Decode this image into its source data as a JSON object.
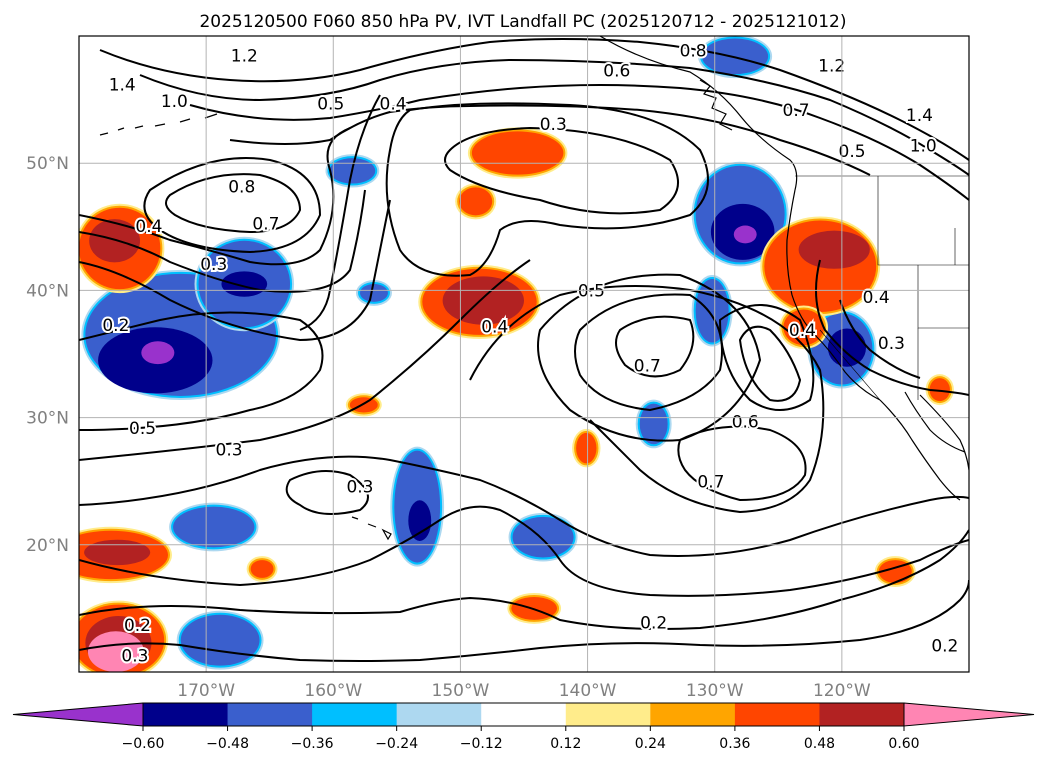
{
  "title": "2025120500 F060 850 hPa PV, IVT Landfall PC (2025120712 - 2025121012)",
  "map": {
    "lon_range": [
      -180,
      -110
    ],
    "lat_range": [
      10,
      60
    ],
    "lon_ticks": [
      {
        "lon": -170,
        "label": "170°W"
      },
      {
        "lon": -160,
        "label": "160°W"
      },
      {
        "lon": -150,
        "label": "150°W"
      },
      {
        "lon": -140,
        "label": "140°W"
      },
      {
        "lon": -130,
        "label": "130°W"
      },
      {
        "lon": -120,
        "label": "120°W"
      }
    ],
    "lat_ticks": [
      {
        "lat": 20,
        "label": "20°N"
      },
      {
        "lat": 30,
        "label": "30°N"
      },
      {
        "lat": 40,
        "label": "40°N"
      },
      {
        "lat": 50,
        "label": "50°N"
      }
    ],
    "grid": true,
    "tick_label_color": "#808080"
  },
  "colorbar": {
    "orientation": "horizontal",
    "extend": "both",
    "colors": [
      "#9932cc",
      "#00008b",
      "#3a5fcd",
      "#00bfff",
      "#add8f0",
      "#ffffff",
      "#ffec8b",
      "#ffa500",
      "#ff4500",
      "#b22222",
      "#ff85b3"
    ],
    "tick_labels": [
      "−0.60",
      "−0.48",
      "−0.36",
      "−0.24",
      "−0.12",
      "0.12",
      "0.24",
      "0.36",
      "0.48",
      "0.60"
    ]
  },
  "contour_labels": [
    {
      "text": "1.4",
      "lon": -176.6,
      "lat": 56.1
    },
    {
      "text": "1.0",
      "lon": -172.5,
      "lat": 54.8
    },
    {
      "text": "1.2",
      "lon": -167.0,
      "lat": 58.4
    },
    {
      "text": "0.5",
      "lon": -160.2,
      "lat": 54.6
    },
    {
      "text": "0.4",
      "lon": -155.3,
      "lat": 54.6
    },
    {
      "text": "0.6",
      "lon": -137.7,
      "lat": 57.2
    },
    {
      "text": "0.8",
      "lon": -131.7,
      "lat": 58.8
    },
    {
      "text": "1.2",
      "lon": -120.8,
      "lat": 57.6
    },
    {
      "text": "0.7",
      "lon": -123.6,
      "lat": 54.1
    },
    {
      "text": "1.4",
      "lon": -113.9,
      "lat": 53.7
    },
    {
      "text": "1.0",
      "lon": -113.6,
      "lat": 51.3
    },
    {
      "text": "0.5",
      "lon": -119.2,
      "lat": 50.9
    },
    {
      "text": "0.3",
      "lon": -142.7,
      "lat": 53.0
    },
    {
      "text": "0.8",
      "lon": -167.2,
      "lat": 48.1
    },
    {
      "text": "0.4",
      "lon": -174.5,
      "lat": 45.0
    },
    {
      "text": "0.7",
      "lon": -165.3,
      "lat": 45.2
    },
    {
      "text": "0.3",
      "lon": -169.4,
      "lat": 42.0
    },
    {
      "text": "0.2",
      "lon": -177.1,
      "lat": 37.2
    },
    {
      "text": "0.5",
      "lon": -139.7,
      "lat": 39.9
    },
    {
      "text": "0.4",
      "lon": -147.3,
      "lat": 37.1
    },
    {
      "text": "0.7",
      "lon": -135.3,
      "lat": 34.0
    },
    {
      "text": "0.6",
      "lon": -127.6,
      "lat": 29.6
    },
    {
      "text": "0.7",
      "lon": -130.3,
      "lat": 24.9
    },
    {
      "text": "0.4",
      "lon": -123.1,
      "lat": 36.8
    },
    {
      "text": "0.4",
      "lon": -117.3,
      "lat": 39.4
    },
    {
      "text": "0.3",
      "lon": -116.1,
      "lat": 35.8
    },
    {
      "text": "0.5",
      "lon": -175.0,
      "lat": 29.1
    },
    {
      "text": "0.3",
      "lon": -168.2,
      "lat": 27.4
    },
    {
      "text": "0.3",
      "lon": -157.9,
      "lat": 24.5
    },
    {
      "text": "0.2",
      "lon": -134.8,
      "lat": 13.8
    },
    {
      "text": "0.2",
      "lon": -175.4,
      "lat": 13.6
    },
    {
      "text": "0.3",
      "lon": -175.6,
      "lat": 11.2
    },
    {
      "text": "0.2",
      "lon": -111.9,
      "lat": 12.0
    }
  ],
  "shaded_areas": [
    {
      "level": -0.36,
      "color": "#3a5fcd",
      "center": [
        -172,
        36.5
      ],
      "radius": [
        7.5,
        4.8
      ]
    },
    {
      "level": -0.36,
      "color": "#3a5fcd",
      "center": [
        -167,
        40.5
      ],
      "radius": [
        3.6,
        3.4
      ]
    },
    {
      "level": -0.48,
      "color": "#00008b",
      "center": [
        -174,
        34.5
      ],
      "radius": [
        4.5,
        2.6
      ]
    },
    {
      "level": -0.6,
      "color": "#9932cc",
      "center": [
        -173.8,
        35.1
      ],
      "radius": [
        1.3,
        0.9
      ]
    },
    {
      "level": -0.48,
      "color": "#00008b",
      "center": [
        -167,
        40.5
      ],
      "radius": [
        1.8,
        1.0
      ]
    },
    {
      "level": -0.36,
      "color": "#3a5fcd",
      "center": [
        -158.5,
        49.4
      ],
      "radius": [
        1.8,
        1.0
      ]
    },
    {
      "level": -0.36,
      "color": "#3a5fcd",
      "center": [
        -156.8,
        39.8
      ],
      "radius": [
        1.1,
        0.7
      ]
    },
    {
      "level": -0.36,
      "color": "#3a5fcd",
      "center": [
        -128,
        46.0
      ],
      "radius": [
        3.5,
        3.8
      ]
    },
    {
      "level": -0.48,
      "color": "#00008b",
      "center": [
        -127.8,
        44.6
      ],
      "radius": [
        2.5,
        2.2
      ]
    },
    {
      "level": -0.6,
      "color": "#9932cc",
      "center": [
        -127.6,
        44.4
      ],
      "radius": [
        0.9,
        0.7
      ]
    },
    {
      "level": -0.36,
      "color": "#3a5fcd",
      "center": [
        -130.2,
        38.4
      ],
      "radius": [
        1.3,
        2.5
      ]
    },
    {
      "level": -0.36,
      "color": "#3a5fcd",
      "center": [
        -120,
        35.4
      ],
      "radius": [
        2.4,
        2.8
      ]
    },
    {
      "level": -0.48,
      "color": "#00008b",
      "center": [
        -119.6,
        35.5
      ],
      "radius": [
        1.5,
        1.5
      ]
    },
    {
      "level": -0.36,
      "color": "#3a5fcd",
      "center": [
        -134.8,
        29.5
      ],
      "radius": [
        1.1,
        1.6
      ]
    },
    {
      "level": -0.36,
      "color": "#3a5fcd",
      "center": [
        -153.4,
        23.0
      ],
      "radius": [
        1.8,
        4.4
      ]
    },
    {
      "level": -0.48,
      "color": "#00008b",
      "center": [
        -153.2,
        21.9
      ],
      "radius": [
        0.9,
        1.6
      ]
    },
    {
      "level": -0.36,
      "color": "#3a5fcd",
      "center": [
        -143.5,
        20.6
      ],
      "radius": [
        2.4,
        1.6
      ]
    },
    {
      "level": -0.36,
      "color": "#3a5fcd",
      "center": [
        -169.4,
        21.4
      ],
      "radius": [
        3.2,
        1.6
      ]
    },
    {
      "level": -0.36,
      "color": "#3a5fcd",
      "center": [
        -168.9,
        12.5
      ],
      "radius": [
        3.1,
        2.0
      ]
    },
    {
      "level": -0.36,
      "color": "#3a5fcd",
      "center": [
        -128.4,
        58.4
      ],
      "radius": [
        2.6,
        1.4
      ]
    },
    {
      "level": 0.36,
      "color": "#ff4500",
      "center": [
        -176.8,
        43.3
      ],
      "radius": [
        3.2,
        3.2
      ]
    },
    {
      "level": 0.48,
      "color": "#b22222",
      "center": [
        -177.2,
        43.9
      ],
      "radius": [
        2.0,
        1.7
      ]
    },
    {
      "level": 0.36,
      "color": "#ff4500",
      "center": [
        -145.5,
        50.8
      ],
      "radius": [
        3.6,
        1.7
      ]
    },
    {
      "level": 0.36,
      "color": "#ff4500",
      "center": [
        -148.8,
        47.0
      ],
      "radius": [
        1.3,
        1.1
      ]
    },
    {
      "level": 0.36,
      "color": "#ff4500",
      "center": [
        -148.5,
        39.1
      ],
      "radius": [
        4.5,
        2.6
      ]
    },
    {
      "level": 0.48,
      "color": "#b22222",
      "center": [
        -148.2,
        39.2
      ],
      "radius": [
        3.2,
        1.9
      ]
    },
    {
      "level": 0.36,
      "color": "#ff4500",
      "center": [
        -121.7,
        41.9
      ],
      "radius": [
        4.4,
        3.6
      ]
    },
    {
      "level": 0.48,
      "color": "#b22222",
      "center": [
        -120.6,
        43.2
      ],
      "radius": [
        2.8,
        1.5
      ]
    },
    {
      "level": 0.36,
      "color": "#ff4500",
      "center": [
        -123.0,
        37.1
      ],
      "radius": [
        1.6,
        1.4
      ]
    },
    {
      "level": 0.36,
      "color": "#ff4500",
      "center": [
        -177.5,
        19.2
      ],
      "radius": [
        4.5,
        1.9
      ]
    },
    {
      "level": 0.48,
      "color": "#b22222",
      "center": [
        -177.0,
        19.4
      ],
      "radius": [
        2.6,
        1.0
      ]
    },
    {
      "level": 0.36,
      "color": "#ff4500",
      "center": [
        -140.1,
        27.6
      ],
      "radius": [
        0.8,
        1.2
      ]
    },
    {
      "level": 0.36,
      "color": "#ff4500",
      "center": [
        -157.6,
        31.0
      ],
      "radius": [
        1.1,
        0.6
      ]
    },
    {
      "level": 0.36,
      "color": "#ff4500",
      "center": [
        -165.6,
        18.1
      ],
      "radius": [
        0.9,
        0.7
      ]
    },
    {
      "level": 0.36,
      "color": "#ff4500",
      "center": [
        -144.2,
        15.0
      ],
      "radius": [
        1.8,
        0.9
      ]
    },
    {
      "level": 0.36,
      "color": "#ff4500",
      "center": [
        -115.8,
        17.9
      ],
      "radius": [
        1.3,
        0.9
      ]
    },
    {
      "level": 0.36,
      "color": "#ff4500",
      "center": [
        -112.3,
        32.2
      ],
      "radius": [
        0.8,
        0.9
      ]
    },
    {
      "level": 0.36,
      "color": "#ff4500",
      "center": [
        -176.9,
        12.5
      ],
      "radius": [
        3.6,
        2.8
      ]
    },
    {
      "level": 0.48,
      "color": "#b22222",
      "center": [
        -176.9,
        12.3
      ],
      "radius": [
        2.6,
        2.1
      ]
    },
    {
      "level": 0.6,
      "color": "#ff85b3",
      "center": [
        -177.1,
        11.6
      ],
      "radius": [
        2.2,
        1.6
      ]
    }
  ]
}
